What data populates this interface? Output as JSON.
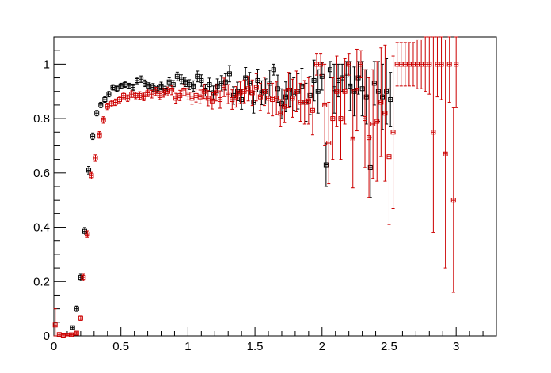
{
  "chart_data": {
    "type": "scatter",
    "title": "",
    "xlabel": "",
    "ylabel": "",
    "xlim": [
      0,
      3.3
    ],
    "ylim": [
      0,
      1.1
    ],
    "x_ticks": [
      "0",
      "0.5",
      "1",
      "1.5",
      "2",
      "2.5",
      "3"
    ],
    "y_ticks": [
      "0",
      "0.2",
      "0.4",
      "0.6",
      "0.8",
      "1"
    ],
    "grid": false,
    "legend": "none",
    "series": [
      {
        "color": "#000000",
        "marker": "open-square",
        "x_err": 0.0125,
        "points": [
          [
            0.14,
            0.03,
            0.006
          ],
          [
            0.17,
            0.1,
            0.01
          ],
          [
            0.2,
            0.215,
            0.012
          ],
          [
            0.23,
            0.385,
            0.014
          ],
          [
            0.26,
            0.61,
            0.014
          ],
          [
            0.29,
            0.735,
            0.012
          ],
          [
            0.32,
            0.82,
            0.01
          ],
          [
            0.35,
            0.85,
            0.01
          ],
          [
            0.38,
            0.87,
            0.01
          ],
          [
            0.41,
            0.89,
            0.01
          ],
          [
            0.44,
            0.915,
            0.01
          ],
          [
            0.47,
            0.91,
            0.01
          ],
          [
            0.5,
            0.92,
            0.01
          ],
          [
            0.53,
            0.925,
            0.01
          ],
          [
            0.56,
            0.92,
            0.01
          ],
          [
            0.59,
            0.915,
            0.012
          ],
          [
            0.62,
            0.94,
            0.012
          ],
          [
            0.65,
            0.945,
            0.012
          ],
          [
            0.68,
            0.93,
            0.012
          ],
          [
            0.71,
            0.92,
            0.012
          ],
          [
            0.74,
            0.915,
            0.014
          ],
          [
            0.77,
            0.91,
            0.014
          ],
          [
            0.8,
            0.92,
            0.014
          ],
          [
            0.83,
            0.905,
            0.014
          ],
          [
            0.86,
            0.935,
            0.015
          ],
          [
            0.89,
            0.925,
            0.015
          ],
          [
            0.92,
            0.955,
            0.016
          ],
          [
            0.95,
            0.945,
            0.016
          ],
          [
            0.98,
            0.935,
            0.017
          ],
          [
            1.01,
            0.925,
            0.018
          ],
          [
            1.04,
            0.92,
            0.019
          ],
          [
            1.07,
            0.955,
            0.02
          ],
          [
            1.1,
            0.94,
            0.021
          ],
          [
            1.13,
            0.905,
            0.022
          ],
          [
            1.16,
            0.925,
            0.024
          ],
          [
            1.19,
            0.895,
            0.025
          ],
          [
            1.22,
            0.92,
            0.026
          ],
          [
            1.25,
            0.93,
            0.028
          ],
          [
            1.28,
            0.935,
            0.03
          ],
          [
            1.31,
            0.965,
            0.03
          ],
          [
            1.34,
            0.885,
            0.032
          ],
          [
            1.37,
            0.9,
            0.034
          ],
          [
            1.4,
            0.87,
            0.036
          ],
          [
            1.43,
            0.95,
            0.038
          ],
          [
            1.46,
            0.93,
            0.04
          ],
          [
            1.49,
            0.86,
            0.04
          ],
          [
            1.52,
            0.94,
            0.042
          ],
          [
            1.55,
            0.895,
            0.044
          ],
          [
            1.58,
            0.9,
            0.046
          ],
          [
            1.61,
            0.93,
            0.048
          ],
          [
            1.64,
            0.98,
            0.02
          ],
          [
            1.67,
            0.91,
            0.05
          ],
          [
            1.7,
            0.855,
            0.055
          ],
          [
            1.73,
            0.88,
            0.055
          ],
          [
            1.76,
            0.905,
            0.06
          ],
          [
            1.79,
            0.89,
            0.06
          ],
          [
            1.82,
            0.9,
            0.065
          ],
          [
            1.85,
            0.92,
            0.065
          ],
          [
            1.88,
            0.86,
            0.07
          ],
          [
            1.91,
            0.885,
            0.07
          ],
          [
            1.94,
            0.94,
            0.075
          ],
          [
            1.97,
            0.9,
            0.08
          ],
          [
            2.0,
            0.955,
            0.05
          ],
          [
            2.03,
            0.63,
            0.08
          ],
          [
            2.06,
            0.98,
            0.03
          ],
          [
            2.09,
            0.91,
            0.09
          ],
          [
            2.12,
            0.94,
            0.06
          ],
          [
            2.15,
            0.95,
            0.05
          ],
          [
            2.18,
            0.96,
            0.05
          ],
          [
            2.21,
            0.92,
            0.09
          ],
          [
            2.24,
            0.9,
            0.09
          ],
          [
            2.27,
            0.95,
            0.06
          ],
          [
            2.3,
            0.91,
            0.1
          ],
          [
            2.33,
            0.88,
            0.1
          ],
          [
            2.36,
            0.62,
            0.11
          ],
          [
            2.39,
            0.93,
            0.08
          ],
          [
            2.42,
            0.9,
            0.11
          ],
          [
            2.45,
            0.88,
            0.12
          ],
          [
            2.48,
            0.9,
            0.12
          ],
          [
            2.51,
            0.87,
            0.1
          ]
        ]
      },
      {
        "color": "#cc0000",
        "marker": "open-square",
        "x_err": 0.0125,
        "points": [
          [
            0.01,
            0.04,
            0.06
          ],
          [
            0.04,
            0.005,
            0.005
          ],
          [
            0.07,
            0.0,
            0.004
          ],
          [
            0.1,
            0.003,
            0.004
          ],
          [
            0.13,
            0.004,
            0.004
          ],
          [
            0.17,
            0.01,
            0.004
          ],
          [
            0.2,
            0.065,
            0.008
          ],
          [
            0.22,
            0.215,
            0.012
          ],
          [
            0.25,
            0.375,
            0.012
          ],
          [
            0.28,
            0.59,
            0.012
          ],
          [
            0.31,
            0.655,
            0.012
          ],
          [
            0.34,
            0.74,
            0.012
          ],
          [
            0.37,
            0.795,
            0.012
          ],
          [
            0.4,
            0.845,
            0.012
          ],
          [
            0.43,
            0.855,
            0.012
          ],
          [
            0.46,
            0.86,
            0.012
          ],
          [
            0.49,
            0.87,
            0.012
          ],
          [
            0.52,
            0.885,
            0.012
          ],
          [
            0.55,
            0.875,
            0.012
          ],
          [
            0.58,
            0.89,
            0.012
          ],
          [
            0.61,
            0.885,
            0.012
          ],
          [
            0.64,
            0.885,
            0.014
          ],
          [
            0.67,
            0.88,
            0.014
          ],
          [
            0.7,
            0.895,
            0.014
          ],
          [
            0.73,
            0.89,
            0.014
          ],
          [
            0.76,
            0.9,
            0.015
          ],
          [
            0.79,
            0.885,
            0.015
          ],
          [
            0.82,
            0.895,
            0.016
          ],
          [
            0.85,
            0.9,
            0.016
          ],
          [
            0.88,
            0.905,
            0.017
          ],
          [
            0.91,
            0.875,
            0.018
          ],
          [
            0.94,
            0.885,
            0.019
          ],
          [
            0.97,
            0.905,
            0.02
          ],
          [
            1.0,
            0.89,
            0.021
          ],
          [
            1.03,
            0.875,
            0.022
          ],
          [
            1.06,
            0.885,
            0.024
          ],
          [
            1.09,
            0.88,
            0.025
          ],
          [
            1.12,
            0.9,
            0.026
          ],
          [
            1.15,
            0.875,
            0.028
          ],
          [
            1.18,
            0.865,
            0.03
          ],
          [
            1.21,
            0.895,
            0.03
          ],
          [
            1.24,
            0.87,
            0.032
          ],
          [
            1.27,
            0.915,
            0.034
          ],
          [
            1.3,
            0.89,
            0.035
          ],
          [
            1.33,
            0.87,
            0.036
          ],
          [
            1.36,
            0.88,
            0.038
          ],
          [
            1.39,
            0.895,
            0.04
          ],
          [
            1.42,
            0.9,
            0.042
          ],
          [
            1.45,
            0.91,
            0.045
          ],
          [
            1.48,
            0.895,
            0.047
          ],
          [
            1.51,
            0.915,
            0.05
          ],
          [
            1.54,
            0.88,
            0.05
          ],
          [
            1.57,
            0.9,
            0.052
          ],
          [
            1.6,
            0.875,
            0.055
          ],
          [
            1.63,
            0.87,
            0.06
          ],
          [
            1.66,
            0.875,
            0.06
          ],
          [
            1.69,
            0.82,
            0.05
          ],
          [
            1.72,
            0.845,
            0.06
          ],
          [
            1.75,
            0.905,
            0.065
          ],
          [
            1.78,
            0.875,
            0.07
          ],
          [
            1.81,
            0.9,
            0.075
          ],
          [
            1.84,
            0.86,
            0.07
          ],
          [
            1.87,
            0.86,
            0.08
          ],
          [
            1.9,
            0.865,
            0.085
          ],
          [
            1.93,
            0.83,
            0.09
          ],
          [
            1.96,
            1.0,
            0.04
          ],
          [
            1.99,
            1.0,
            0.04
          ],
          [
            2.02,
            0.85,
            0.15
          ],
          [
            2.05,
            0.71,
            0.15
          ],
          [
            2.08,
            0.8,
            0.15
          ],
          [
            2.11,
            0.9,
            0.13
          ],
          [
            2.14,
            0.8,
            0.15
          ],
          [
            2.17,
            0.9,
            0.12
          ],
          [
            2.2,
            1.0,
            0.04
          ],
          [
            2.23,
            0.725,
            0.18
          ],
          [
            2.26,
            0.905,
            0.15
          ],
          [
            2.29,
            1.0,
            0.05
          ],
          [
            2.32,
            0.8,
            0.18
          ],
          [
            2.35,
            0.73,
            0.22
          ],
          [
            2.38,
            0.78,
            0.2
          ],
          [
            2.41,
            0.79,
            0.22
          ],
          [
            2.44,
            0.86,
            0.2
          ],
          [
            2.47,
            0.82,
            0.25
          ],
          [
            2.5,
            0.66,
            0.25
          ],
          [
            2.53,
            0.75,
            0.28
          ],
          [
            2.56,
            1.0,
            0.08
          ],
          [
            2.59,
            1.0,
            0.08
          ],
          [
            2.62,
            1.0,
            0.08
          ],
          [
            2.65,
            1.0,
            0.08
          ],
          [
            2.68,
            1.0,
            0.08
          ],
          [
            2.71,
            1.0,
            0.09
          ],
          [
            2.74,
            1.0,
            0.09
          ],
          [
            2.77,
            1.0,
            0.1
          ],
          [
            2.8,
            1.0,
            0.11
          ],
          [
            2.83,
            0.75,
            0.37
          ],
          [
            2.86,
            1.0,
            0.12
          ],
          [
            2.89,
            1.0,
            0.13
          ],
          [
            2.92,
            0.67,
            0.42
          ],
          [
            2.95,
            1.0,
            0.14
          ],
          [
            2.98,
            0.5,
            0.34
          ],
          [
            3.0,
            1.0,
            0.16
          ]
        ]
      }
    ]
  }
}
